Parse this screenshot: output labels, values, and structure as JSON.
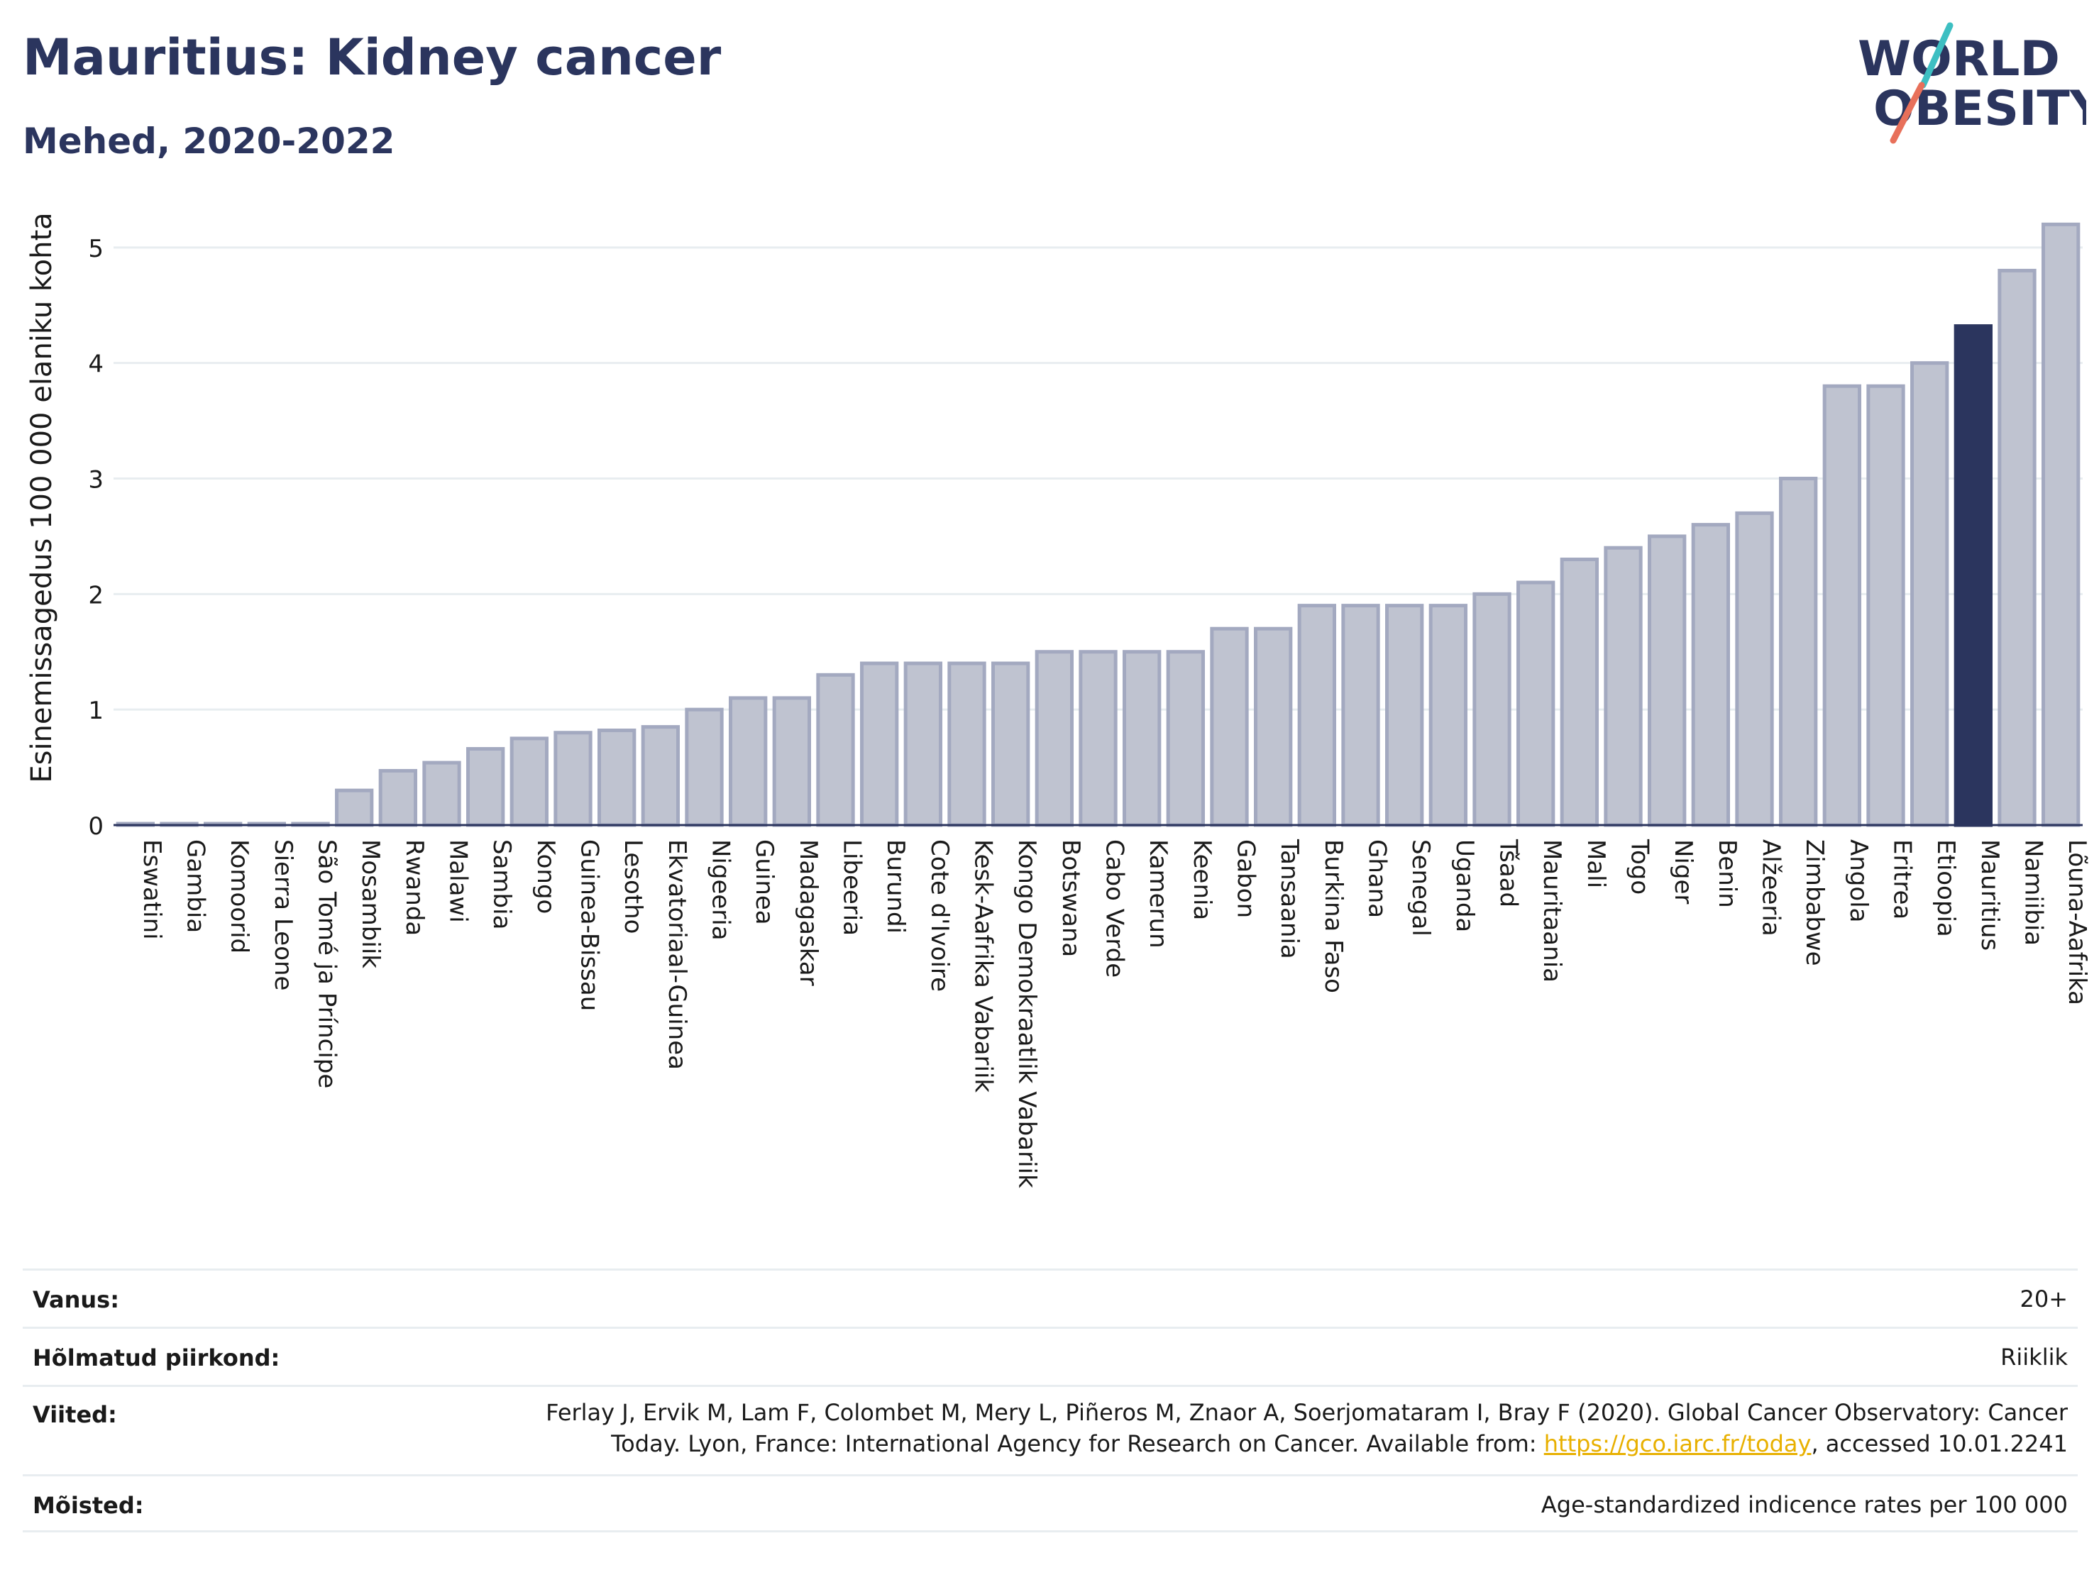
{
  "header": {
    "title": "Mauritius: Kidney cancer",
    "subtitle": "Mehed, 2020-2022"
  },
  "logo": {
    "line1": "WORLD",
    "line2": "OBESITY",
    "colors": {
      "text": "#2b355e",
      "teal": "#3dbfc2",
      "coral": "#e8705a"
    }
  },
  "chart_data": {
    "type": "bar",
    "ylabel": "Esinemissagedus 100 000 elaniku kohta",
    "xlabel": "",
    "ylim": [
      0,
      5.3
    ],
    "yticks": [
      0,
      1,
      2,
      3,
      4,
      5
    ],
    "grid": true,
    "highlight": "Mauritius",
    "colors": {
      "bar": "#bfc3d0",
      "bar_border": "#a3a9c0",
      "highlight": "#2b355e",
      "axis": "#2b355e",
      "grid": "#e8edf0"
    },
    "categories": [
      "Eswatini",
      "Gambia",
      "Komoorid",
      "Sierra Leone",
      "São Tomé ja Príncipe",
      "Mosambiik",
      "Rwanda",
      "Malawi",
      "Sambia",
      "Kongo",
      "Guinea-Bissau",
      "Lesotho",
      "Ekvatoriaal-Guinea",
      "Nigeeria",
      "Guinea",
      "Madagaskar",
      "Libeeria",
      "Burundi",
      "Cote d'Ivoire",
      "Kesk-Aafrika Vabariik",
      "Kongo Demokraatlik Vabariik",
      "Botswana",
      "Cabo Verde",
      "Kamerun",
      "Keenia",
      "Gabon",
      "Tansaania",
      "Burkina Faso",
      "Ghana",
      "Senegal",
      "Uganda",
      "Tšaad",
      "Mauritaania",
      "Mali",
      "Togo",
      "Niger",
      "Benin",
      "Alžeeria",
      "Zimbabwe",
      "Angola",
      "Eritrea",
      "Etioopia",
      "Mauritius",
      "Namiibia",
      "Lõuna-Aafrika"
    ],
    "values": [
      0.01,
      0.01,
      0.01,
      0.01,
      0.01,
      0.3,
      0.47,
      0.54,
      0.66,
      0.75,
      0.8,
      0.82,
      0.85,
      1.0,
      1.1,
      1.1,
      1.3,
      1.4,
      1.4,
      1.4,
      1.4,
      1.5,
      1.5,
      1.5,
      1.5,
      1.7,
      1.7,
      1.9,
      1.9,
      1.9,
      1.9,
      2.0,
      2.1,
      2.3,
      2.4,
      2.5,
      2.6,
      2.7,
      3.0,
      3.8,
      3.8,
      4.0,
      4.32,
      4.8,
      5.2
    ]
  },
  "footer": {
    "rows": [
      {
        "label": "Vanus:",
        "value": "20+"
      },
      {
        "label": "Hõlmatud piirkond:",
        "value": "Riiklik"
      },
      {
        "label": "Viited:",
        "value_line1": "Ferlay J, Ervik M, Lam F, Colombet M, Mery L, Piñeros M, Znaor A, Soerjomataram I, Bray F (2020). Global Cancer Observatory: Cancer",
        "value_line2_pre": "Today. Lyon, France: International Agency for Research on Cancer. Available from: ",
        "link": "https://gco.iarc.fr/today",
        "value_line2_post": ", accessed 10.01.2241"
      },
      {
        "label": "Mõisted:",
        "value": "Age-standardized indicence rates per 100 000"
      }
    ]
  }
}
